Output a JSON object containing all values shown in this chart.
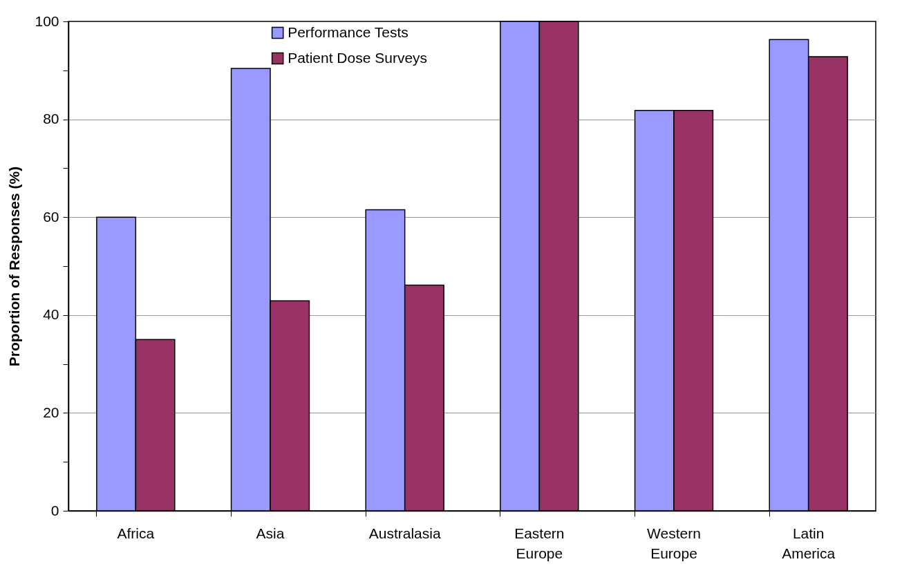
{
  "chart_data": {
    "type": "bar",
    "ylabel": "Proportion of Responses (%)",
    "categories": [
      "Africa",
      "Asia",
      "Australasia",
      "Eastern Europe",
      "Western Europe",
      "Latin America"
    ],
    "series": [
      {
        "name": "Performance Tests",
        "color": "#9999ff",
        "values": [
          60,
          90.4,
          61.5,
          100,
          81.8,
          96.3
        ]
      },
      {
        "name": "Patient Dose Surveys",
        "color": "#993366",
        "values": [
          35,
          42.9,
          46.1,
          100,
          81.8,
          92.8
        ]
      }
    ],
    "ylim": [
      0,
      100
    ],
    "yticks": [
      0,
      {
        "value": 10,
        "label": null
      },
      20,
      {
        "value": 30,
        "label": null
      },
      40,
      {
        "value": 50,
        "label": null
      },
      60,
      {
        "value": 70,
        "label": null
      },
      80,
      {
        "value": 90,
        "label": null
      },
      100
    ],
    "grid": "y",
    "legend": "top"
  }
}
